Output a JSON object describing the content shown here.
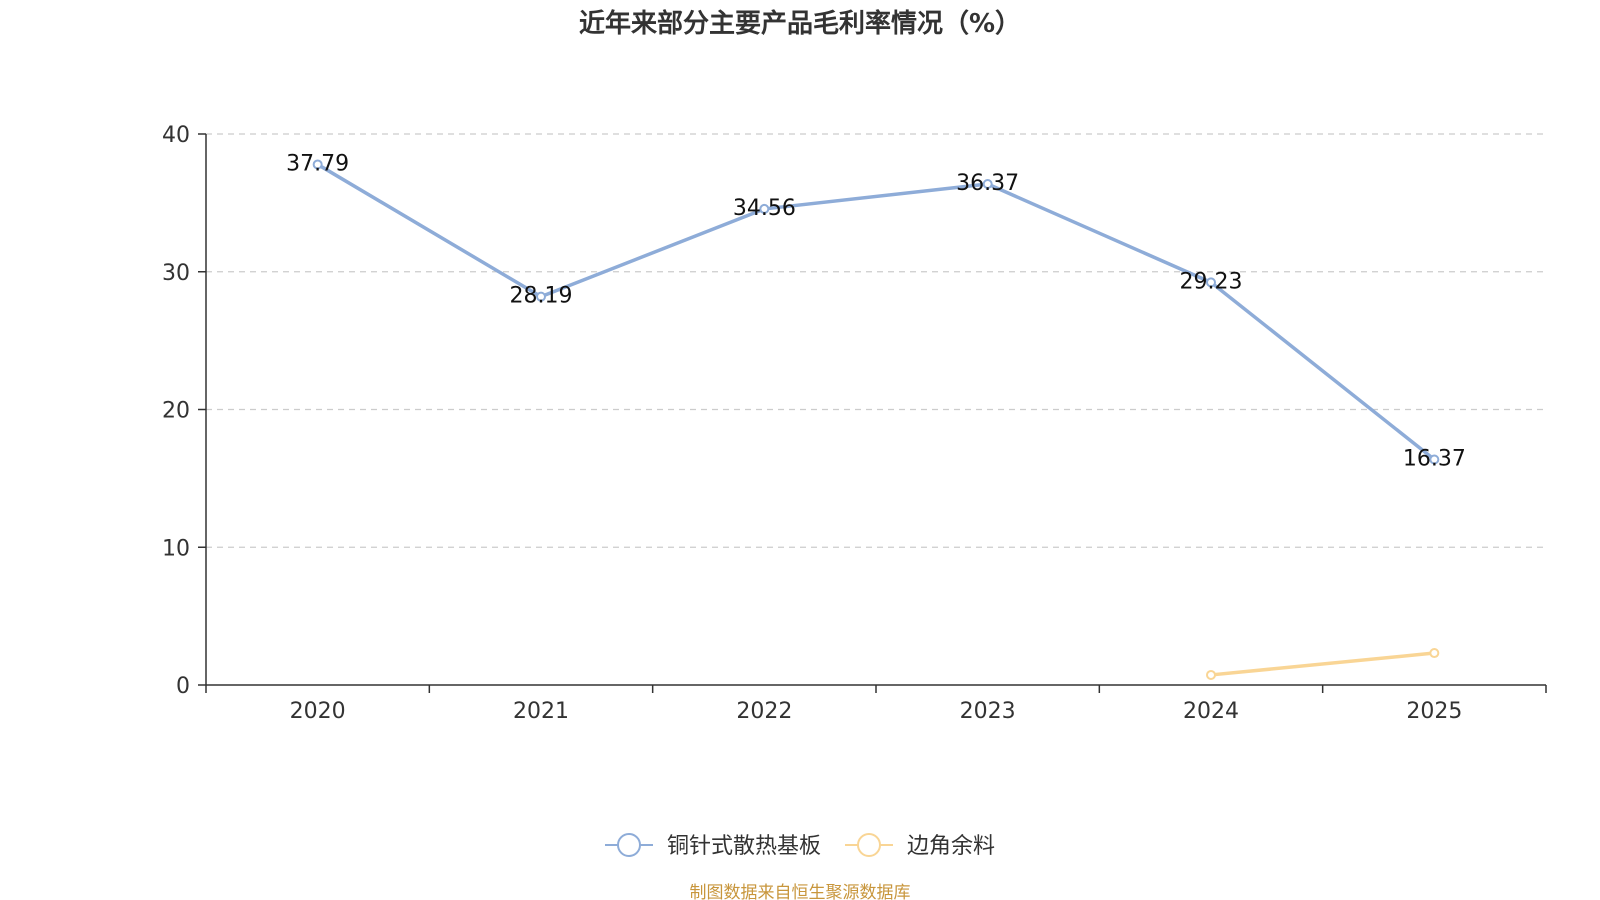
{
  "chart_data": {
    "type": "line",
    "title": "近年来部分主要产品毛利率情况（%）",
    "categories": [
      "2020",
      "2021",
      "2022",
      "2023",
      "2024",
      "2025"
    ],
    "ylim": [
      0,
      40
    ],
    "yticks": [
      0,
      10,
      20,
      30,
      40
    ],
    "grid": true,
    "legend_position": "bottom",
    "series": [
      {
        "name": "铜针式散热基板",
        "color": "#8eacd8",
        "values": [
          37.79,
          28.19,
          34.56,
          36.37,
          29.23,
          16.37
        ],
        "labels": [
          "37.79",
          "28.19",
          "34.56",
          "36.37",
          "29.23",
          "16.37"
        ]
      },
      {
        "name": "边角余料",
        "color": "#f9d595",
        "values": [
          null,
          null,
          null,
          null,
          0.73,
          2.32
        ],
        "labels": []
      }
    ],
    "source_note": "制图数据来自恒生聚源数据库"
  }
}
